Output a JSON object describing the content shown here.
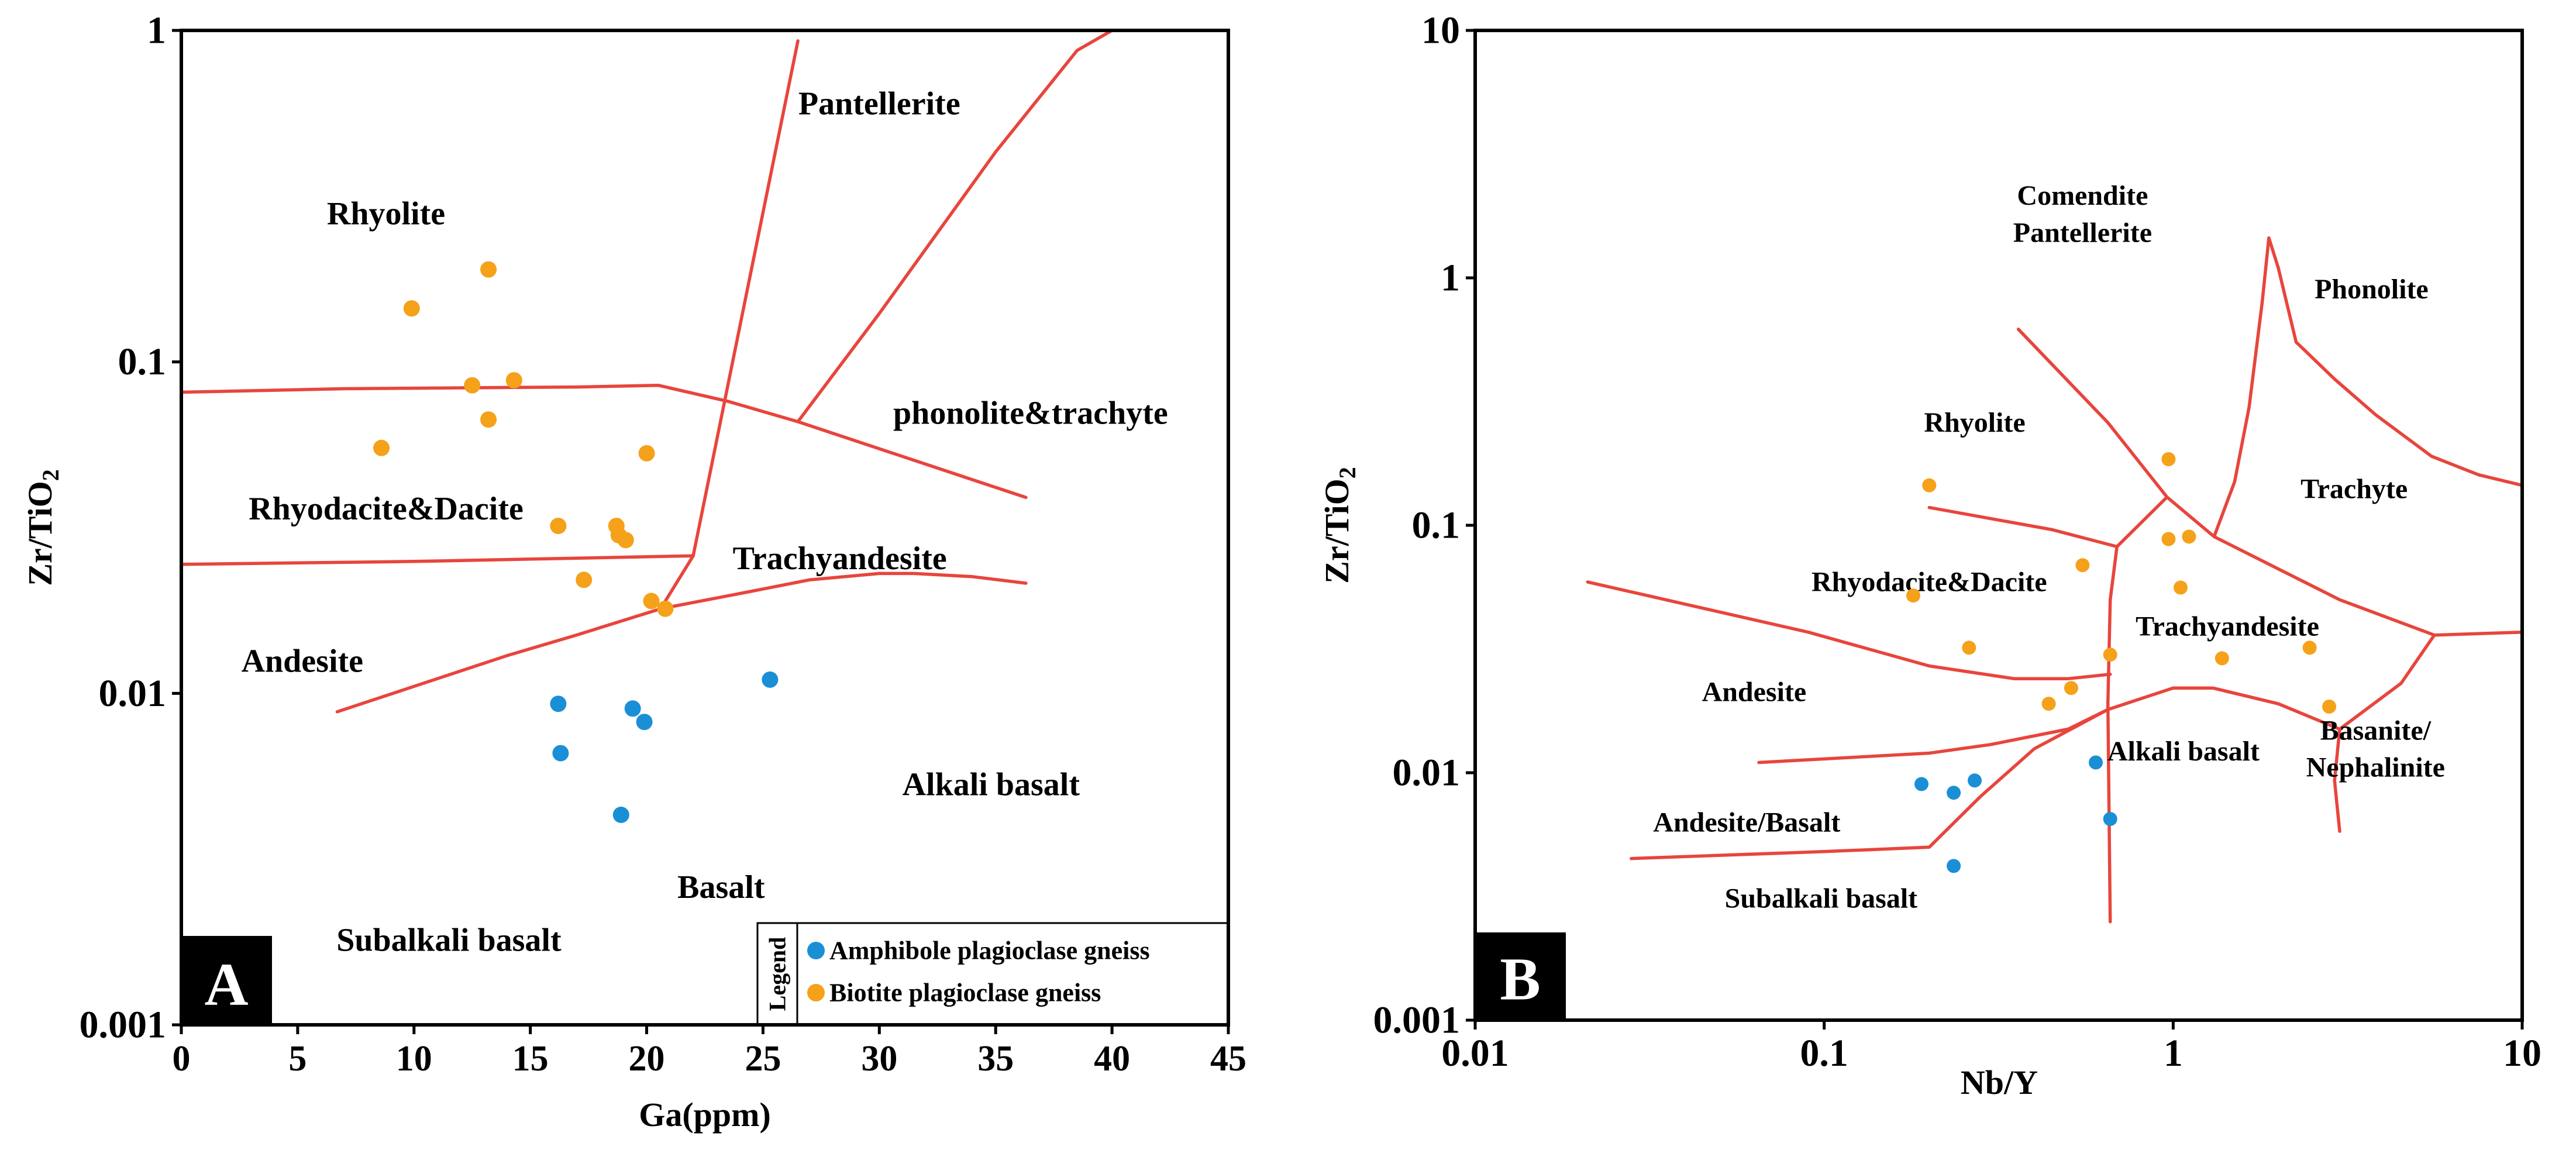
{
  "chart_data": [
    {
      "type": "scatter",
      "panel_label": "A",
      "xlabel": "Ga(ppm)",
      "ylabel_main": "Zr/TiO",
      "ylabel_sub": "2",
      "xscale": "linear",
      "yscale": "log",
      "xlim": [
        0,
        45
      ],
      "ylim": [
        0.001,
        1
      ],
      "xticks": [
        0,
        5,
        10,
        15,
        20,
        25,
        30,
        35,
        40,
        45
      ],
      "xtick_labels": [
        "0",
        "5",
        "10",
        "15",
        "20",
        "25",
        "30",
        "35",
        "40",
        "45"
      ],
      "yticks": [
        0.001,
        0.01,
        0.1,
        1
      ],
      "ytick_labels": [
        "0.001",
        "0.01",
        "0.1",
        "1"
      ],
      "legend": {
        "title": "Legend",
        "placement": "bottom-right",
        "entries": [
          {
            "label": "Amphibole plagioclase gneiss",
            "color": "#1a8fd6"
          },
          {
            "label": "Biotite plagioclase gneiss",
            "color": "#f5a11a"
          }
        ]
      },
      "series": [
        {
          "name": "Amphibole plagioclase gneiss",
          "color": "#1a8fd6",
          "points": [
            [
              16.2,
              0.0093
            ],
            [
              16.3,
              0.0066
            ],
            [
              19.4,
              0.009
            ],
            [
              19.9,
              0.0082
            ],
            [
              18.9,
              0.0043
            ],
            [
              25.3,
              0.011
            ]
          ]
        },
        {
          "name": "Biotite plagioclase gneiss",
          "color": "#f5a11a",
          "points": [
            [
              13.2,
              0.19
            ],
            [
              9.9,
              0.145
            ],
            [
              12.5,
              0.085
            ],
            [
              14.3,
              0.088
            ],
            [
              13.2,
              0.067
            ],
            [
              8.6,
              0.055
            ],
            [
              20.0,
              0.053
            ],
            [
              16.2,
              0.032
            ],
            [
              18.7,
              0.032
            ],
            [
              18.8,
              0.03
            ],
            [
              19.1,
              0.029
            ],
            [
              17.3,
              0.022
            ],
            [
              20.2,
              0.019
            ],
            [
              20.8,
              0.018
            ]
          ]
        }
      ],
      "field_labels": [
        {
          "text": "Rhyolite",
          "x": 8.8,
          "y": 0.28
        },
        {
          "text": "Pantellerite",
          "x": 30.0,
          "y": 0.6
        },
        {
          "text": "phonolite&trachyte",
          "x": 36.5,
          "y": 0.07
        },
        {
          "text": "Rhyodacite&Dacite",
          "x": 8.8,
          "y": 0.036
        },
        {
          "text": "Trachyandesite",
          "x": 28.3,
          "y": 0.0255
        },
        {
          "text": "Andesite",
          "x": 5.2,
          "y": 0.0125
        },
        {
          "text": "Alkali basalt",
          "x": 34.8,
          "y": 0.0053
        },
        {
          "text": "Basalt",
          "x": 23.2,
          "y": 0.0026
        },
        {
          "text": "Subalkali basalt",
          "x": 11.5,
          "y": 0.0018
        }
      ],
      "boundaries": [
        [
          [
            0.0,
            0.081
          ],
          [
            7.0,
            0.083
          ],
          [
            17.0,
            0.084
          ],
          [
            20.5,
            0.085
          ],
          [
            23.5,
            0.076
          ],
          [
            26.5,
            0.066
          ],
          [
            36.3,
            0.039
          ]
        ],
        [
          [
            0.0,
            0.0245
          ],
          [
            10.0,
            0.025
          ],
          [
            22.0,
            0.026
          ]
        ],
        [
          [
            26.5,
            0.93
          ],
          [
            22.0,
            0.026
          ],
          [
            20.6,
            0.018
          ],
          [
            17.0,
            0.015
          ],
          [
            14.0,
            0.013
          ],
          [
            6.7,
            0.0088
          ]
        ],
        [
          [
            20.6,
            0.018
          ],
          [
            24.0,
            0.02
          ],
          [
            27.0,
            0.022
          ],
          [
            30.0,
            0.023
          ],
          [
            31.5,
            0.023
          ],
          [
            34.0,
            0.0225
          ],
          [
            36.3,
            0.0215
          ]
        ],
        [
          [
            26.5,
            0.066
          ],
          [
            30.0,
            0.14
          ],
          [
            35.0,
            0.43
          ],
          [
            38.5,
            0.87
          ],
          [
            40.0,
            1.0
          ]
        ]
      ]
    },
    {
      "type": "scatter",
      "panel_label": "B",
      "xlabel": "Nb/Y",
      "ylabel_main": "Zr/TiO",
      "ylabel_sub": "2",
      "xscale": "log",
      "yscale": "log",
      "xlim": [
        0.01,
        10
      ],
      "ylim": [
        0.001,
        10
      ],
      "xticks": [
        0.01,
        0.1,
        1,
        10
      ],
      "xtick_labels": [
        "0.01",
        "0.1",
        "1",
        "10"
      ],
      "yticks": [
        0.001,
        0.01,
        0.1,
        1,
        10
      ],
      "ytick_labels": [
        "0.001",
        "0.01",
        "0.1",
        "1",
        "10"
      ],
      "series": [
        {
          "name": "Amphibole plagioclase gneiss",
          "color": "#1a8fd6",
          "points": [
            [
              0.19,
              0.009
            ],
            [
              0.235,
              0.0083
            ],
            [
              0.27,
              0.0093
            ],
            [
              0.6,
              0.011
            ],
            [
              0.66,
              0.0065
            ],
            [
              0.235,
              0.0042
            ]
          ]
        },
        {
          "name": "Biotite plagioclase gneiss",
          "color": "#f5a11a",
          "points": [
            [
              0.2,
              0.145
            ],
            [
              0.97,
              0.185
            ],
            [
              0.97,
              0.088
            ],
            [
              1.11,
              0.09
            ],
            [
              0.55,
              0.069
            ],
            [
              1.05,
              0.056
            ],
            [
              0.18,
              0.052
            ],
            [
              0.26,
              0.032
            ],
            [
              0.66,
              0.03
            ],
            [
              1.38,
              0.029
            ],
            [
              2.46,
              0.032
            ],
            [
              0.51,
              0.022
            ],
            [
              0.44,
              0.019
            ],
            [
              2.8,
              0.0185
            ]
          ]
        }
      ],
      "field_labels": [
        {
          "text": "Comendite",
          "x": 0.55,
          "y": 2.15
        },
        {
          "text": "Pantellerite",
          "x": 0.55,
          "y": 1.52
        },
        {
          "text": "Phonolite",
          "x": 3.7,
          "y": 0.9
        },
        {
          "text": "Rhyolite",
          "x": 0.27,
          "y": 0.26
        },
        {
          "text": "Trachyte",
          "x": 3.3,
          "y": 0.14
        },
        {
          "text": "Rhyodacite&Dacite",
          "x": 0.2,
          "y": 0.059
        },
        {
          "text": "Trachyandesite",
          "x": 1.43,
          "y": 0.039
        },
        {
          "text": "Andesite",
          "x": 0.063,
          "y": 0.0212
        },
        {
          "text": "Alkali basalt",
          "x": 1.07,
          "y": 0.0122
        },
        {
          "text": "Basanite/",
          "x": 3.8,
          "y": 0.0148
        },
        {
          "text": "Nephalinite",
          "x": 3.8,
          "y": 0.0105
        },
        {
          "text": "Andesite/Basalt",
          "x": 0.06,
          "y": 0.0063
        },
        {
          "text": "Subalkali basalt",
          "x": 0.098,
          "y": 0.0031
        }
      ],
      "boundaries": [
        [
          [
            0.021,
            0.059
          ],
          [
            0.09,
            0.037
          ],
          [
            0.2,
            0.027
          ],
          [
            0.35,
            0.024
          ],
          [
            0.5,
            0.024
          ],
          [
            0.66,
            0.025
          ]
        ],
        [
          [
            0.66,
            0.0025
          ],
          [
            0.65,
            0.019
          ],
          [
            0.66,
            0.05
          ],
          [
            0.69,
            0.082
          ]
        ],
        [
          [
            0.2,
            0.118
          ],
          [
            0.45,
            0.096
          ],
          [
            0.69,
            0.082
          ],
          [
            0.96,
            0.13
          ],
          [
            1.31,
            0.09
          ]
        ],
        [
          [
            0.36,
            0.62
          ],
          [
            0.65,
            0.26
          ],
          [
            0.96,
            0.13
          ]
        ],
        [
          [
            1.31,
            0.09
          ],
          [
            1.5,
            0.15
          ],
          [
            1.65,
            0.3
          ],
          [
            1.8,
            0.8
          ],
          [
            1.88,
            1.45
          ],
          [
            2.0,
            1.1
          ],
          [
            2.25,
            0.55
          ],
          [
            2.9,
            0.39
          ],
          [
            3.8,
            0.28
          ],
          [
            5.5,
            0.19
          ],
          [
            7.5,
            0.16
          ],
          [
            10.0,
            0.145
          ]
        ],
        [
          [
            1.31,
            0.09
          ],
          [
            3.0,
            0.05
          ],
          [
            5.6,
            0.036
          ],
          [
            10.0,
            0.037
          ]
        ],
        [
          [
            0.065,
            0.011
          ],
          [
            0.2,
            0.012
          ],
          [
            0.3,
            0.013
          ],
          [
            0.5,
            0.015
          ],
          [
            0.65,
            0.018
          ],
          [
            1.0,
            0.022
          ],
          [
            1.3,
            0.022
          ],
          [
            2.0,
            0.019
          ],
          [
            3.0,
            0.015
          ],
          [
            4.5,
            0.023
          ],
          [
            5.6,
            0.036
          ]
        ],
        [
          [
            3.0,
            0.015
          ],
          [
            2.9,
            0.0093
          ],
          [
            3.0,
            0.0058
          ]
        ],
        [
          [
            0.028,
            0.0045
          ],
          [
            0.1,
            0.0048
          ],
          [
            0.2,
            0.005
          ],
          [
            0.28,
            0.008
          ],
          [
            0.4,
            0.0125
          ],
          [
            0.65,
            0.018
          ]
        ]
      ]
    }
  ]
}
